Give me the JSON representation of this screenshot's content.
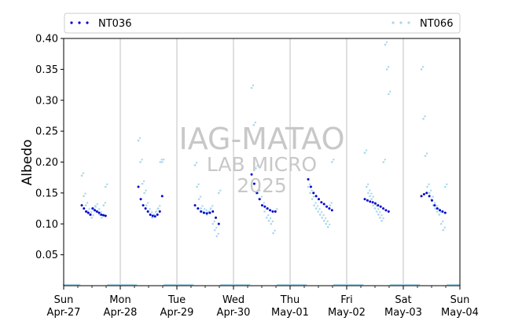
{
  "chart_data": {
    "type": "scatter",
    "ylabel": "Albedo",
    "ylim": [
      0,
      0.4
    ],
    "y_ticks": [
      "0.05",
      "0.10",
      "0.15",
      "0.20",
      "0.25",
      "0.30",
      "0.35",
      "0.40"
    ],
    "x_range": [
      "2025-04-27",
      "2025-05-04"
    ],
    "x_ticks": [
      {
        "day": "Sun",
        "date": "Apr-27"
      },
      {
        "day": "Mon",
        "date": "Apr-28"
      },
      {
        "day": "Tue",
        "date": "Apr-29"
      },
      {
        "day": "Wed",
        "date": "Apr-30"
      },
      {
        "day": "Thu",
        "date": "May-01"
      },
      {
        "day": "Fri",
        "date": "May-02"
      },
      {
        "day": "Sat",
        "date": "May-03"
      },
      {
        "day": "Sun",
        "date": "May-04"
      }
    ],
    "vertical_grid_at_day_boundaries": true,
    "legend_position": "top",
    "series": [
      {
        "name": "NT036",
        "color": "#0000cc",
        "marker": "dot",
        "daily_profile": [
          {
            "day": "2025-04-27",
            "values": [
              0.13,
              0.125,
              0.12,
              0.118,
              0.115,
              0.125,
              0.122,
              0.12,
              0.118,
              0.115,
              0.114,
              0.113
            ]
          },
          {
            "day": "2025-04-28",
            "values": [
              0.16,
              0.14,
              0.13,
              0.125,
              0.12,
              0.115,
              0.113,
              0.112,
              0.115,
              0.12,
              0.145
            ]
          },
          {
            "day": "2025-04-29",
            "values": [
              0.13,
              0.125,
              0.12,
              0.118,
              0.117,
              0.118,
              0.12,
              0.11,
              0.1
            ]
          },
          {
            "day": "2025-04-30",
            "values": [
              0.18,
              0.165,
              0.15,
              0.14,
              0.13,
              0.128,
              0.125,
              0.122,
              0.12,
              0.12
            ]
          },
          {
            "day": "2025-05-01",
            "values": [
              0.172,
              0.16,
              0.15,
              0.145,
              0.14,
              0.135,
              0.132,
              0.128,
              0.125,
              0.122
            ]
          },
          {
            "day": "2025-05-02",
            "values": [
              0.14,
              0.138,
              0.136,
              0.135,
              0.133,
              0.13,
              0.128,
              0.125,
              0.122,
              0.12
            ]
          },
          {
            "day": "2025-05-03",
            "values": [
              0.145,
              0.148,
              0.15,
              0.145,
              0.138,
              0.13,
              0.125,
              0.122,
              0.12,
              0.118
            ]
          }
        ]
      },
      {
        "name": "NT066",
        "color": "#a8d8ea",
        "marker": "dot",
        "daily_profile": [
          {
            "day": "2025-04-27",
            "values": [
              0.178,
              0.145,
              0.13,
              0.12,
              0.115,
              0.11,
              0.125,
              0.128,
              0.12,
              0.115,
              0.11,
              0.13,
              0.16
            ]
          },
          {
            "day": "2025-04-28",
            "values": [
              0.235,
              0.2,
              0.165,
              0.15,
              0.13,
              0.12,
              0.115,
              0.11,
              0.115,
              0.12,
              0.125,
              0.2,
              0.2
            ]
          },
          {
            "day": "2025-04-29",
            "values": [
              0.195,
              0.16,
              0.14,
              0.125,
              0.12,
              0.118,
              0.115,
              0.12,
              0.125,
              0.1,
              0.09,
              0.08,
              0.15
            ]
          },
          {
            "day": "2025-04-30",
            "values": [
              0.32,
              0.26,
              0.19,
              0.15,
              0.14,
              0.13,
              0.12,
              0.11,
              0.105,
              0.1,
              0.085,
              0.12
            ]
          },
          {
            "day": "2025-05-01",
            "values": [
              0.16,
              0.15,
              0.14,
              0.13,
              0.125,
              0.12,
              0.115,
              0.11,
              0.105,
              0.1,
              0.095,
              0.13,
              0.2
            ]
          },
          {
            "day": "2025-05-02",
            "values": [
              0.215,
              0.16,
              0.15,
              0.145,
              0.14,
              0.13,
              0.125,
              0.12,
              0.115,
              0.11,
              0.105,
              0.2,
              0.39,
              0.35,
              0.31
            ]
          },
          {
            "day": "2025-05-03",
            "values": [
              0.35,
              0.27,
              0.21,
              0.16,
              0.15,
              0.14,
              0.13,
              0.125,
              0.12,
              0.115,
              0.1,
              0.09,
              0.16
            ]
          }
        ]
      }
    ]
  },
  "watermark": {
    "line1": "IAG-MATAO",
    "line2": "LAB MICRO",
    "line3": "2025"
  }
}
